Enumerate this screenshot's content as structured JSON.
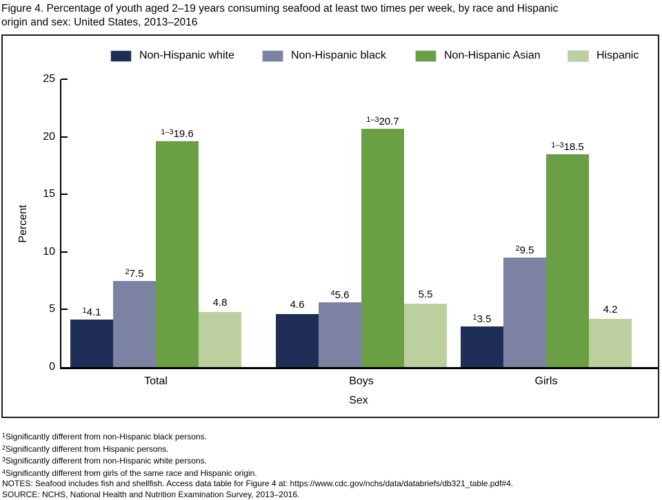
{
  "title": "Figure 4. Percentage of youth aged 2–19 years consuming seafood at least two times per week, by race and Hispanic\norigin and sex: United States, 2013–2016",
  "chart_data": {
    "type": "bar",
    "title": "Figure 4. Percentage of youth aged 2–19 years consuming seafood at least two times per week, by race and Hispanic origin and sex: United States, 2013–2016",
    "categories": [
      "Total",
      "Boys",
      "Girls"
    ],
    "series": [
      {
        "name": "Non-Hispanic white",
        "color": "#1E2E57",
        "values": [
          4.1,
          4.6,
          3.5
        ],
        "value_labels": [
          {
            "sup": "1",
            "text": "4.1"
          },
          {
            "sup": "",
            "text": "4.6"
          },
          {
            "sup": "1",
            "text": "3.5"
          }
        ]
      },
      {
        "name": "Non-Hispanic black",
        "color": "#7B82A2",
        "values": [
          7.5,
          5.6,
          9.5
        ],
        "value_labels": [
          {
            "sup": "2",
            "text": "7.5"
          },
          {
            "sup": "4",
            "text": "5.6"
          },
          {
            "sup": "2",
            "text": "9.5"
          }
        ]
      },
      {
        "name": "Non-Hispanic Asian",
        "color": "#6A9F44",
        "values": [
          19.6,
          20.7,
          18.5
        ],
        "value_labels": [
          {
            "sup": "1–3",
            "text": "19.6"
          },
          {
            "sup": "1–3",
            "text": "20.7"
          },
          {
            "sup": "1–3",
            "text": "18.5"
          }
        ]
      },
      {
        "name": "Hispanic",
        "color": "#BCCF9E",
        "values": [
          4.8,
          5.5,
          4.2
        ],
        "value_labels": [
          {
            "sup": "",
            "text": "4.8"
          },
          {
            "sup": "",
            "text": "5.5"
          },
          {
            "sup": "",
            "text": "4.2"
          }
        ]
      }
    ],
    "xlabel": "Sex",
    "ylabel": "Percent",
    "ylim": [
      0,
      25
    ],
    "yticks": [
      0,
      5,
      10,
      15,
      20,
      25
    ],
    "legend_position": "top",
    "grid": false
  },
  "footnotes": [
    {
      "sup": "1",
      "text": "Significantly different from non-Hispanic black persons."
    },
    {
      "sup": "2",
      "text": "Significantly different from Hispanic persons."
    },
    {
      "sup": "3",
      "text": "Significantly different from non-Hispanic white persons."
    },
    {
      "sup": "4",
      "text": "Significantly different from girls of the same race and Hispanic origin."
    },
    {
      "sup": "",
      "text": "NOTES: Seafood includes fish and shellfish. Access data table for Figure 4 at: https://www.cdc.gov/nchs/data/databriefs/db321_table.pdf#4."
    },
    {
      "sup": "",
      "text": "SOURCE: NCHS, National Health and Nutrition Examination Survey, 2013–2016."
    }
  ]
}
